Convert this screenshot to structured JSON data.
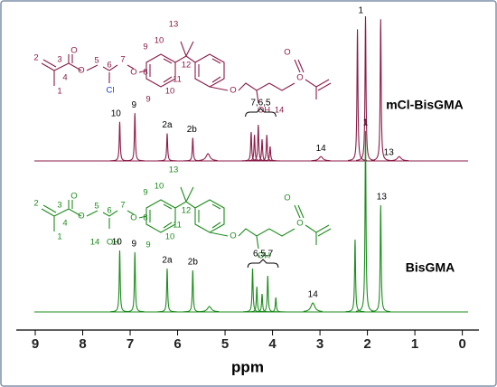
{
  "chart_data": {
    "type": "nmr",
    "xlabel": "ppm",
    "xlim": [
      9.4,
      -0.35
    ],
    "xticks": [
      9,
      8,
      7,
      6,
      5,
      4,
      3,
      2,
      1,
      0
    ],
    "series": [
      {
        "name": "mCl-BisGMA",
        "color": "#8b1c48",
        "x": [
          7.22,
          6.9,
          6.22,
          5.68,
          5.36,
          4.45,
          4.38,
          4.3,
          4.22,
          4.12,
          4.05,
          2.98,
          2.21,
          2.04,
          1.72,
          1.33
        ],
        "values": [
          27,
          33,
          19,
          16,
          5,
          20,
          18,
          25,
          15,
          18,
          10,
          3,
          91,
          100,
          98,
          3
        ],
        "labels": [
          {
            "text": "10",
            "x": 7.3
          },
          {
            "text": "9",
            "x": 6.92
          },
          {
            "text": "2a",
            "x": 6.22
          },
          {
            "text": "2b",
            "x": 5.7
          },
          {
            "text": "7,6,5",
            "x": 4.25
          },
          {
            "text": "14",
            "x": 2.98
          },
          {
            "text": "1",
            "x": 2.14
          },
          {
            "text": "13",
            "x": 1.55
          }
        ],
        "structure_labels": [
          "2",
          "3",
          "4",
          "1",
          "O",
          "O",
          "5",
          "6",
          "7",
          "Cl",
          "O",
          "8",
          "9",
          "10",
          "9",
          "10",
          "11",
          "12",
          "13",
          "O",
          "OH",
          "14",
          "O",
          "O"
        ]
      },
      {
        "name": "BisGMA",
        "color": "#1e8c1e",
        "x": [
          7.22,
          6.9,
          6.22,
          5.68,
          5.33,
          4.42,
          4.33,
          4.22,
          4.1,
          3.93,
          3.15,
          2.26,
          2.04,
          1.72
        ],
        "values": [
          34,
          33,
          24,
          23,
          3,
          24,
          14,
          10,
          20,
          8,
          5,
          40,
          100,
          59
        ],
        "labels": [
          {
            "text": "10",
            "x": 7.28
          },
          {
            "text": "9",
            "x": 6.92
          },
          {
            "text": "2a",
            "x": 6.22
          },
          {
            "text": "2b",
            "x": 5.68
          },
          {
            "text": "6,5,7",
            "x": 4.2
          },
          {
            "text": "14",
            "x": 3.15
          },
          {
            "text": "1",
            "x": 2.04
          },
          {
            "text": "13",
            "x": 1.7
          }
        ],
        "structure_labels": [
          "2",
          "3",
          "4",
          "1",
          "O",
          "O",
          "5",
          "6",
          "7",
          "14",
          "OH",
          "O",
          "8",
          "9",
          "10",
          "9",
          "10",
          "11",
          "12",
          "13",
          "O",
          "OH",
          "O",
          "O"
        ]
      }
    ]
  }
}
